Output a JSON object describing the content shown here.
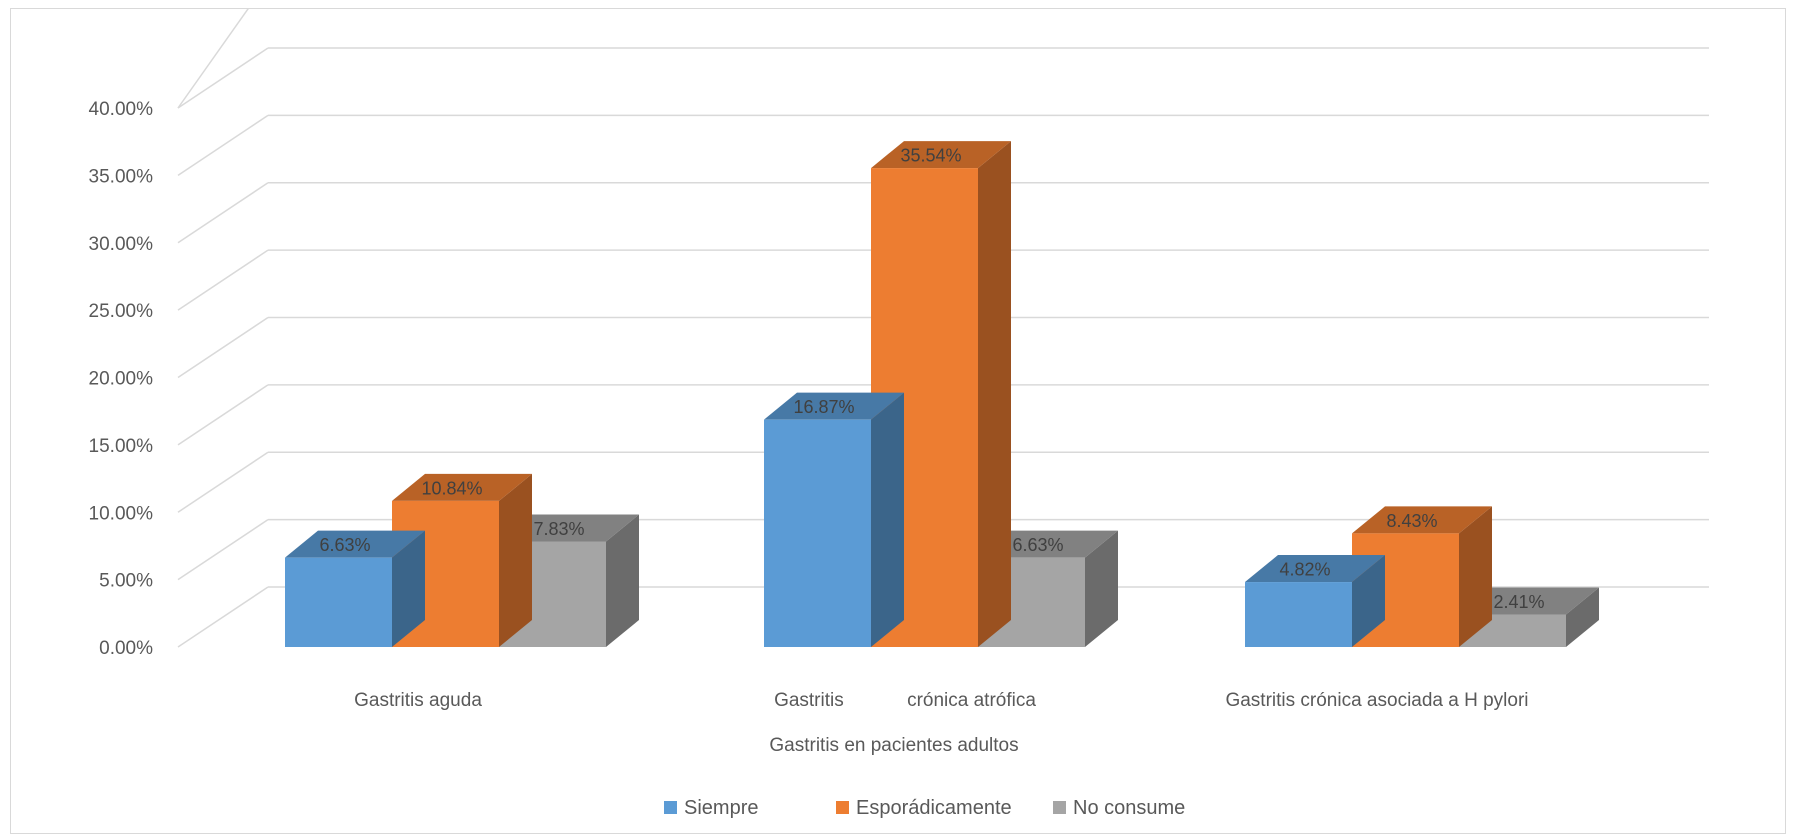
{
  "chart_data": {
    "type": "bar",
    "subtype": "3d-clustered-column",
    "title": "",
    "xlabel": "Gastritis en pacientes adultos",
    "ylabel": "",
    "categories": [
      "Gastritis aguda",
      "Gastritis            crónica atrófica",
      "Gastritis crónica asociada a H pylori"
    ],
    "series": [
      {
        "name": "Siempre",
        "values": [
          6.63,
          16.87,
          4.82
        ],
        "labels": [
          "6.63%",
          "16.87%",
          "4.82%"
        ],
        "color": "#5b9bd5"
      },
      {
        "name": "Esporádicamente",
        "values": [
          10.84,
          35.54,
          8.43
        ],
        "labels": [
          "10.84%",
          "35.54%",
          "8.43%"
        ],
        "color": "#ed7d31"
      },
      {
        "name": "No consume",
        "values": [
          7.83,
          6.63,
          2.41
        ],
        "labels": [
          "7.83%",
          "6.63%",
          "2.41%"
        ],
        "color": "#a5a5a5"
      }
    ],
    "ylim": [
      0,
      40
    ],
    "yticks": [
      "0.00%",
      "5.00%",
      "10.00%",
      "15.00%",
      "20.00%",
      "25.00%",
      "30.00%",
      "35.00%",
      "40.00%"
    ],
    "grid": true,
    "legend": "bottom"
  }
}
